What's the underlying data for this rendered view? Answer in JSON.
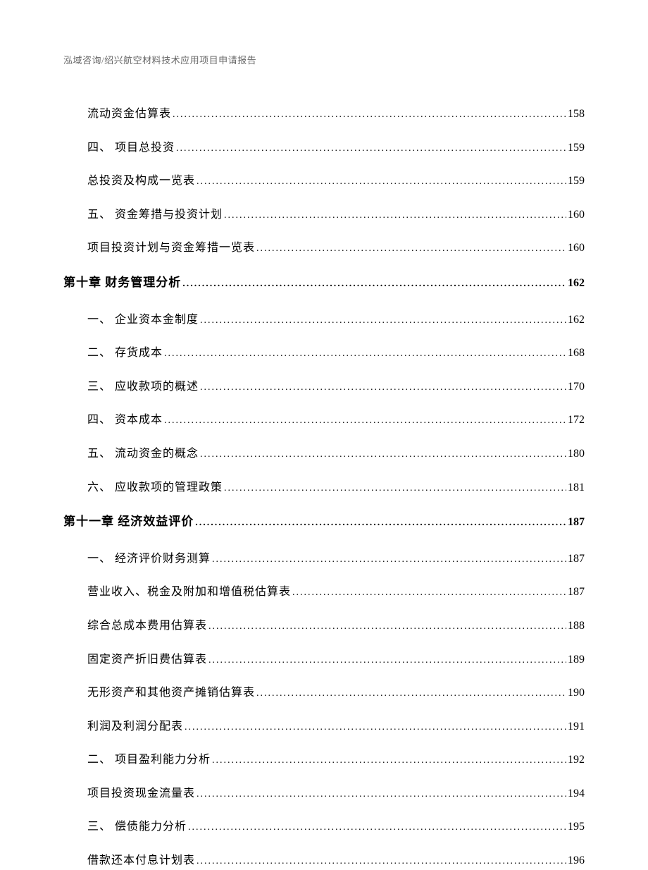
{
  "header": "泓域咨询/绍兴航空材料技术应用项目申请报告",
  "toc": [
    {
      "type": "sub",
      "label": "流动资金估算表",
      "page": "158"
    },
    {
      "type": "sub",
      "label": "四、 项目总投资",
      "page": "159"
    },
    {
      "type": "sub",
      "label": "总投资及构成一览表",
      "page": "159"
    },
    {
      "type": "sub",
      "label": "五、 资金筹措与投资计划",
      "page": "160"
    },
    {
      "type": "sub",
      "label": "项目投资计划与资金筹措一览表",
      "page": "160"
    },
    {
      "type": "chapter",
      "label": "第十章 财务管理分析",
      "page": "162"
    },
    {
      "type": "sub",
      "label": "一、 企业资本金制度",
      "page": "162"
    },
    {
      "type": "sub",
      "label": "二、 存货成本",
      "page": "168"
    },
    {
      "type": "sub",
      "label": "三、 应收款项的概述",
      "page": "170"
    },
    {
      "type": "sub",
      "label": "四、 资本成本",
      "page": "172"
    },
    {
      "type": "sub",
      "label": "五、 流动资金的概念",
      "page": "180"
    },
    {
      "type": "sub",
      "label": "六、 应收款项的管理政策",
      "page": "181"
    },
    {
      "type": "chapter",
      "label": "第十一章 经济效益评价",
      "page": "187"
    },
    {
      "type": "sub",
      "label": "一、 经济评价财务测算",
      "page": "187"
    },
    {
      "type": "sub",
      "label": "营业收入、税金及附加和增值税估算表",
      "page": "187"
    },
    {
      "type": "sub",
      "label": "综合总成本费用估算表",
      "page": "188"
    },
    {
      "type": "sub",
      "label": "固定资产折旧费估算表",
      "page": "189"
    },
    {
      "type": "sub",
      "label": "无形资产和其他资产摊销估算表",
      "page": "190"
    },
    {
      "type": "sub",
      "label": "利润及利润分配表",
      "page": "191"
    },
    {
      "type": "sub",
      "label": "二、 项目盈利能力分析",
      "page": "192"
    },
    {
      "type": "sub",
      "label": "项目投资现金流量表",
      "page": "194"
    },
    {
      "type": "sub",
      "label": "三、 偿债能力分析",
      "page": "195"
    },
    {
      "type": "sub",
      "label": "借款还本付息计划表",
      "page": "196"
    }
  ]
}
